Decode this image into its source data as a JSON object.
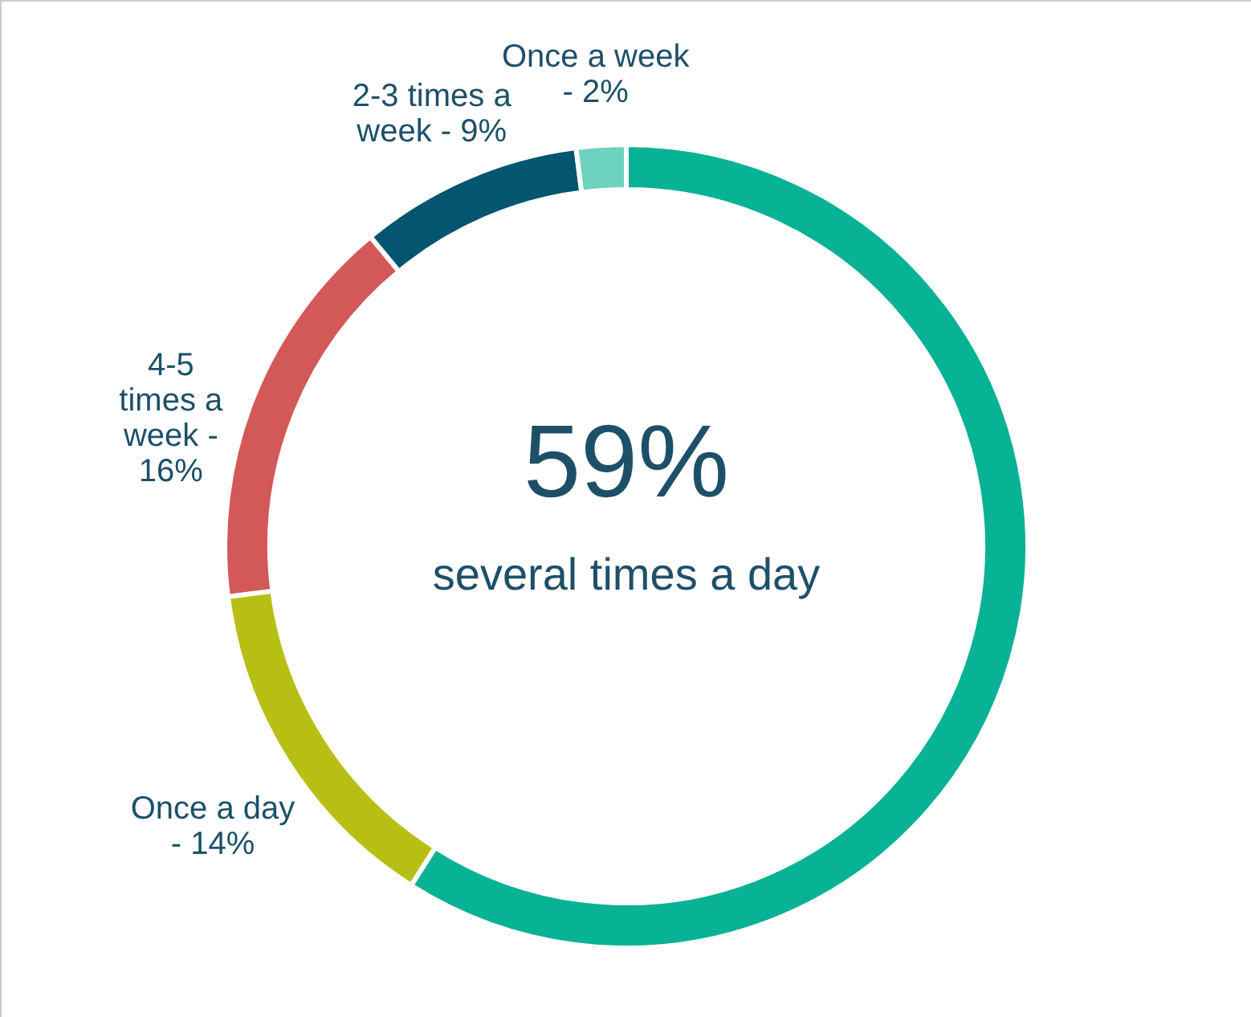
{
  "chart_data": {
    "type": "donut",
    "categories": [
      "several times a day",
      "Once a day -",
      "4-5 times a week -",
      "2-3 times a week -",
      "Once a week -"
    ],
    "values": [
      59,
      14,
      16,
      9,
      2
    ],
    "colors": [
      "#08b294",
      "#b8bf14",
      "#d35858",
      "#035570",
      "#6dd2c0"
    ],
    "value_labels": [
      "59%",
      "14%",
      "16%",
      "9%",
      "2%"
    ]
  }
}
